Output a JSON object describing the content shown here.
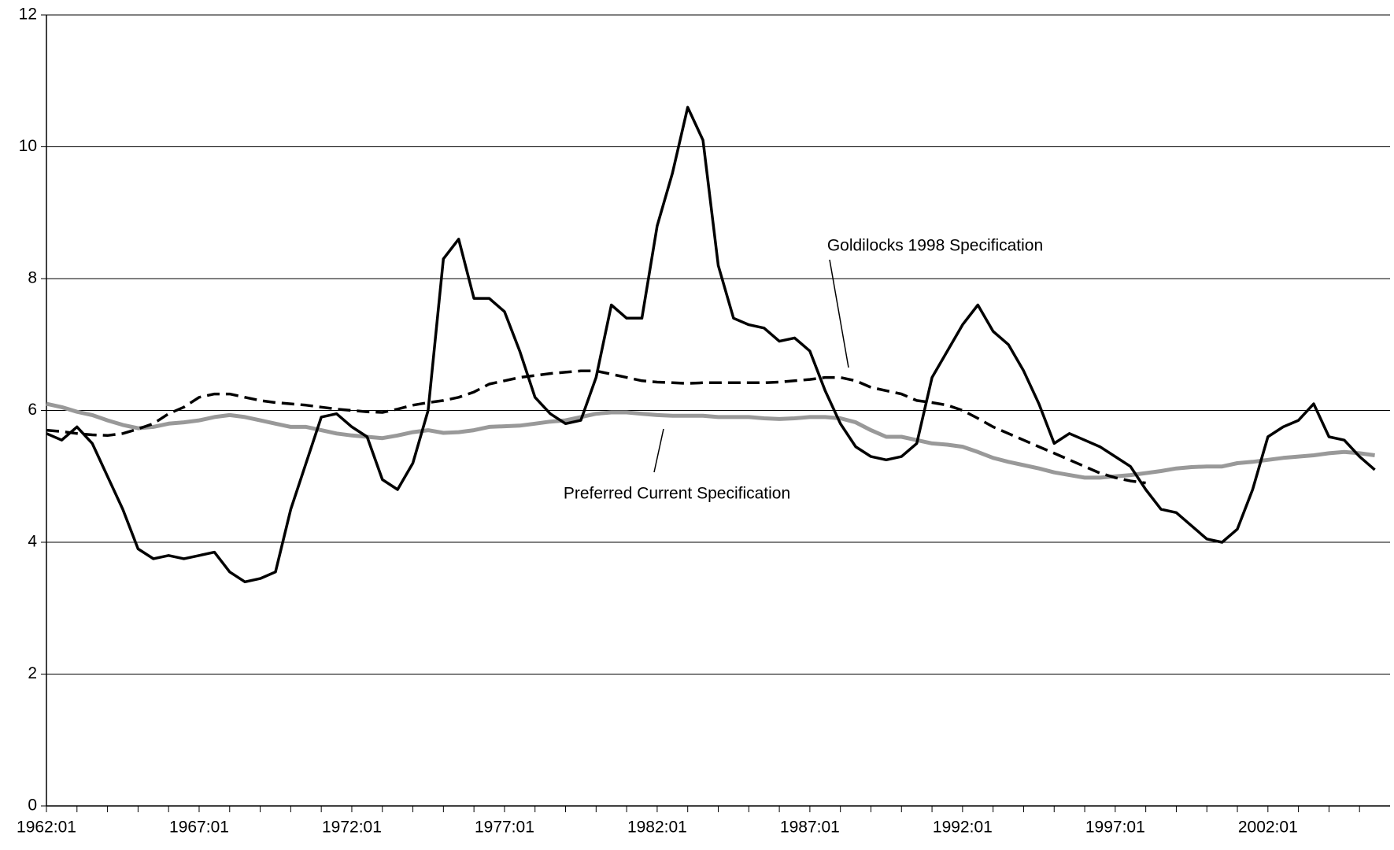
{
  "chart_data": {
    "type": "line",
    "categories": [
      "1962:01",
      null,
      null,
      null,
      null,
      null,
      null,
      null,
      null,
      null,
      "1967:01",
      null,
      null,
      null,
      null,
      null,
      null,
      null,
      null,
      null,
      "1972:01",
      null,
      null,
      null,
      null,
      null,
      null,
      null,
      null,
      null,
      "1977:01",
      null,
      null,
      null,
      null,
      null,
      null,
      null,
      null,
      null,
      "1982:01",
      null,
      null,
      null,
      null,
      null,
      null,
      null,
      null,
      null,
      "1987:01",
      null,
      null,
      null,
      null,
      null,
      null,
      null,
      null,
      null,
      "1992:01",
      null,
      null,
      null,
      null,
      null,
      null,
      null,
      null,
      null,
      "1997:01",
      null,
      null,
      null,
      null,
      null,
      null,
      null,
      null,
      null,
      "2002:01",
      null,
      null,
      null,
      null,
      null,
      null,
      null
    ],
    "series": [
      {
        "color": "#000000",
        "dash": false,
        "values": [
          5.65,
          5.55,
          5.75,
          5.5,
          5.0,
          4.5,
          3.9,
          3.75,
          3.8,
          3.75,
          3.8,
          3.85,
          3.55,
          3.4,
          3.45,
          3.55,
          4.5,
          5.2,
          5.9,
          5.95,
          5.75,
          5.6,
          4.95,
          4.8,
          5.2,
          6.0,
          8.3,
          8.6,
          7.7,
          7.7,
          7.5,
          6.9,
          6.2,
          5.95,
          5.8,
          5.85,
          6.5,
          7.6,
          7.4,
          7.4,
          8.8,
          9.6,
          10.6,
          10.1,
          8.2,
          7.4,
          7.3,
          7.25,
          7.05,
          7.1,
          6.9,
          6.3,
          5.8,
          5.45,
          5.3,
          5.25,
          5.3,
          5.5,
          6.5,
          6.9,
          7.3,
          7.6,
          7.2,
          7.0,
          6.6,
          6.1,
          5.5,
          5.65,
          5.55,
          5.45,
          5.3,
          5.15,
          4.8,
          4.5,
          4.45,
          4.25,
          4.05,
          4.0,
          4.2,
          4.8,
          5.6,
          5.75,
          5.85,
          6.1,
          5.6,
          5.55,
          5.3,
          5.1
        ]
      },
      {
        "name": "Goldilocks 1998 Specification",
        "color": "#000000",
        "dash": true,
        "values": [
          5.7,
          5.68,
          5.65,
          5.63,
          5.62,
          5.65,
          5.72,
          5.8,
          5.95,
          6.05,
          6.2,
          6.25,
          6.25,
          6.2,
          6.15,
          6.12,
          6.1,
          6.08,
          6.05,
          6.02,
          6.0,
          5.98,
          5.97,
          6.02,
          6.08,
          6.12,
          6.15,
          6.2,
          6.28,
          6.4,
          6.45,
          6.5,
          6.53,
          6.56,
          6.58,
          6.6,
          6.6,
          6.55,
          6.5,
          6.45,
          6.43,
          6.42,
          6.41,
          6.42,
          6.42,
          6.42,
          6.42,
          6.42,
          6.43,
          6.45,
          6.47,
          6.5,
          6.5,
          6.45,
          6.35,
          6.3,
          6.25,
          6.15,
          6.12,
          6.08,
          6.0,
          5.88,
          5.75,
          5.65,
          5.55,
          5.45,
          5.35,
          5.25,
          5.15,
          5.05,
          4.98,
          4.93,
          4.9,
          null,
          null,
          null,
          null,
          null,
          null,
          null,
          null,
          null,
          null,
          null,
          null,
          null,
          null,
          null
        ]
      },
      {
        "name": "Preferred Current Specification",
        "color": "#999999",
        "dash": false,
        "values": [
          6.1,
          6.05,
          5.98,
          5.93,
          5.85,
          5.78,
          5.73,
          5.75,
          5.8,
          5.82,
          5.85,
          5.9,
          5.93,
          5.9,
          5.85,
          5.8,
          5.75,
          5.75,
          5.7,
          5.65,
          5.62,
          5.6,
          5.58,
          5.62,
          5.67,
          5.7,
          5.66,
          5.67,
          5.7,
          5.75,
          5.76,
          5.77,
          5.8,
          5.83,
          5.85,
          5.9,
          5.95,
          5.97,
          5.97,
          5.95,
          5.93,
          5.92,
          5.92,
          5.92,
          5.9,
          5.9,
          5.9,
          5.88,
          5.87,
          5.88,
          5.9,
          5.9,
          5.88,
          5.82,
          5.7,
          5.6,
          5.6,
          5.55,
          5.5,
          5.48,
          5.45,
          5.37,
          5.28,
          5.22,
          5.17,
          5.12,
          5.06,
          5.02,
          4.98,
          4.98,
          5.0,
          5.02,
          5.05,
          5.08,
          5.12,
          5.14,
          5.15,
          5.15,
          5.2,
          5.22,
          5.25,
          5.28,
          5.3,
          5.32,
          5.35,
          5.37,
          5.35,
          5.32
        ]
      }
    ],
    "ylim": [
      0,
      12
    ],
    "yticks": [
      0,
      2,
      4,
      6,
      8,
      10,
      12
    ],
    "grid": true
  }
}
